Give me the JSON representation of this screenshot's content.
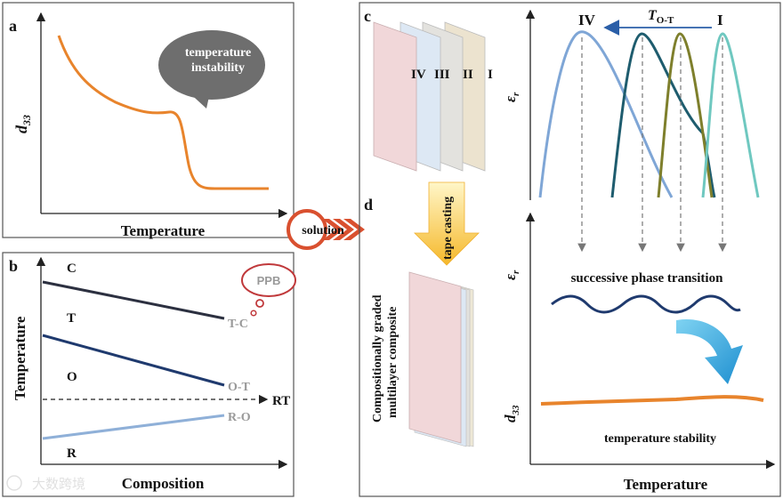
{
  "panel_a": {
    "letter": "a",
    "ylabel": "d",
    "ylabel_sub": "33",
    "xlabel": "Temperature",
    "bubble_line1": "temperature",
    "bubble_line2": "instability"
  },
  "panel_b": {
    "letter": "b",
    "ylabel": "Temperature",
    "xlabel": "Composition",
    "phase_c": "C",
    "phase_t": "T",
    "phase_o": "O",
    "phase_r": "R",
    "boundary_tc": "T-C",
    "boundary_ot": "O-T",
    "boundary_ro": "R-O",
    "rt_label": "RT",
    "thought_bubble": "PPB"
  },
  "solution_label": "solution",
  "panel_c": {
    "letter": "c",
    "layers": [
      "IV",
      "III",
      "II",
      "I"
    ],
    "eps_label": "ε",
    "eps_sub": "r",
    "peak_iv": "IV",
    "peak_i": "I",
    "t_label": "T",
    "t_sub": "O-T"
  },
  "panel_d": {
    "letter": "d",
    "process": "tape casting",
    "composite_line1": "Compositionally graded",
    "composite_line2": "multilayer composite"
  },
  "right_panel": {
    "eps_label": "ε",
    "eps_sub": "r",
    "transition_text": "successive phase transition",
    "d33_label": "d",
    "d33_sub": "33",
    "stability_text": "temperature stability",
    "xlabel": "Temperature"
  },
  "watermark": "大数跨境",
  "colors": {
    "orange": "#e8842c",
    "navy": "#1f3a6e",
    "light_blue": "#8fb0d8",
    "arrow_red": "#d9502f",
    "gray_bubble": "#6e6e6e"
  }
}
